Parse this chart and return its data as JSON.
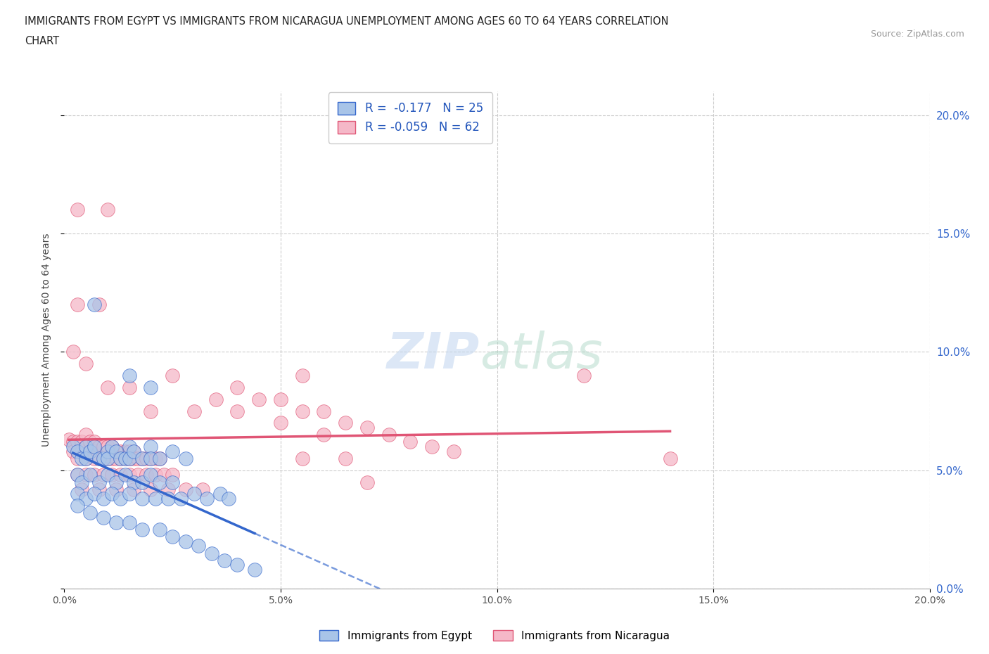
{
  "title_line1": "IMMIGRANTS FROM EGYPT VS IMMIGRANTS FROM NICARAGUA UNEMPLOYMENT AMONG AGES 60 TO 64 YEARS CORRELATION",
  "title_line2": "CHART",
  "source_text": "Source: ZipAtlas.com",
  "ylabel": "Unemployment Among Ages 60 to 64 years",
  "xlim": [
    0.0,
    0.2
  ],
  "ylim": [
    0.0,
    0.21
  ],
  "xticks": [
    0.0,
    0.05,
    0.1,
    0.15,
    0.2
  ],
  "yticks": [
    0.0,
    0.05,
    0.1,
    0.15,
    0.2
  ],
  "legend_R_egypt": "-0.177",
  "legend_N_egypt": "25",
  "legend_R_nicaragua": "-0.059",
  "legend_N_nicaragua": "62",
  "egypt_color": "#a8c4e8",
  "nicaragua_color": "#f5b8c8",
  "egypt_line_color": "#3366cc",
  "nicaragua_line_color": "#e05575",
  "egypt_scatter": [
    [
      0.002,
      0.06
    ],
    [
      0.003,
      0.058
    ],
    [
      0.004,
      0.055
    ],
    [
      0.005,
      0.06
    ],
    [
      0.005,
      0.055
    ],
    [
      0.006,
      0.058
    ],
    [
      0.007,
      0.06
    ],
    [
      0.008,
      0.055
    ],
    [
      0.009,
      0.055
    ],
    [
      0.01,
      0.058
    ],
    [
      0.01,
      0.055
    ],
    [
      0.011,
      0.06
    ],
    [
      0.012,
      0.058
    ],
    [
      0.013,
      0.055
    ],
    [
      0.014,
      0.055
    ],
    [
      0.015,
      0.06
    ],
    [
      0.015,
      0.055
    ],
    [
      0.016,
      0.058
    ],
    [
      0.018,
      0.055
    ],
    [
      0.02,
      0.06
    ],
    [
      0.02,
      0.055
    ],
    [
      0.022,
      0.055
    ],
    [
      0.025,
      0.058
    ],
    [
      0.028,
      0.055
    ],
    [
      0.003,
      0.048
    ],
    [
      0.004,
      0.045
    ],
    [
      0.006,
      0.048
    ],
    [
      0.008,
      0.045
    ],
    [
      0.01,
      0.048
    ],
    [
      0.012,
      0.045
    ],
    [
      0.014,
      0.048
    ],
    [
      0.016,
      0.045
    ],
    [
      0.018,
      0.045
    ],
    [
      0.02,
      0.048
    ],
    [
      0.022,
      0.045
    ],
    [
      0.025,
      0.045
    ],
    [
      0.003,
      0.04
    ],
    [
      0.005,
      0.038
    ],
    [
      0.007,
      0.04
    ],
    [
      0.009,
      0.038
    ],
    [
      0.011,
      0.04
    ],
    [
      0.013,
      0.038
    ],
    [
      0.015,
      0.04
    ],
    [
      0.018,
      0.038
    ],
    [
      0.021,
      0.038
    ],
    [
      0.024,
      0.038
    ],
    [
      0.027,
      0.038
    ],
    [
      0.03,
      0.04
    ],
    [
      0.033,
      0.038
    ],
    [
      0.036,
      0.04
    ],
    [
      0.038,
      0.038
    ],
    [
      0.015,
      0.09
    ],
    [
      0.02,
      0.085
    ],
    [
      0.007,
      0.12
    ],
    [
      0.003,
      0.035
    ],
    [
      0.006,
      0.032
    ],
    [
      0.009,
      0.03
    ],
    [
      0.012,
      0.028
    ],
    [
      0.015,
      0.028
    ],
    [
      0.018,
      0.025
    ],
    [
      0.022,
      0.025
    ],
    [
      0.025,
      0.022
    ],
    [
      0.028,
      0.02
    ],
    [
      0.031,
      0.018
    ],
    [
      0.034,
      0.015
    ],
    [
      0.037,
      0.012
    ],
    [
      0.04,
      0.01
    ],
    [
      0.044,
      0.008
    ]
  ],
  "nicaragua_scatter": [
    [
      0.001,
      0.063
    ],
    [
      0.002,
      0.062
    ],
    [
      0.002,
      0.058
    ],
    [
      0.003,
      0.062
    ],
    [
      0.003,
      0.058
    ],
    [
      0.003,
      0.055
    ],
    [
      0.004,
      0.062
    ],
    [
      0.004,
      0.058
    ],
    [
      0.005,
      0.065
    ],
    [
      0.005,
      0.06
    ],
    [
      0.005,
      0.055
    ],
    [
      0.006,
      0.062
    ],
    [
      0.006,
      0.058
    ],
    [
      0.007,
      0.062
    ],
    [
      0.007,
      0.058
    ],
    [
      0.007,
      0.055
    ],
    [
      0.008,
      0.06
    ],
    [
      0.008,
      0.055
    ],
    [
      0.009,
      0.06
    ],
    [
      0.009,
      0.055
    ],
    [
      0.01,
      0.06
    ],
    [
      0.01,
      0.055
    ],
    [
      0.011,
      0.06
    ],
    [
      0.011,
      0.055
    ],
    [
      0.012,
      0.058
    ],
    [
      0.012,
      0.055
    ],
    [
      0.013,
      0.058
    ],
    [
      0.013,
      0.055
    ],
    [
      0.014,
      0.058
    ],
    [
      0.014,
      0.055
    ],
    [
      0.015,
      0.058
    ],
    [
      0.015,
      0.055
    ],
    [
      0.016,
      0.058
    ],
    [
      0.016,
      0.055
    ],
    [
      0.017,
      0.055
    ],
    [
      0.018,
      0.055
    ],
    [
      0.019,
      0.055
    ],
    [
      0.02,
      0.055
    ],
    [
      0.021,
      0.055
    ],
    [
      0.022,
      0.055
    ],
    [
      0.003,
      0.048
    ],
    [
      0.005,
      0.048
    ],
    [
      0.007,
      0.048
    ],
    [
      0.009,
      0.048
    ],
    [
      0.011,
      0.048
    ],
    [
      0.013,
      0.048
    ],
    [
      0.015,
      0.048
    ],
    [
      0.017,
      0.048
    ],
    [
      0.019,
      0.048
    ],
    [
      0.021,
      0.048
    ],
    [
      0.023,
      0.048
    ],
    [
      0.025,
      0.048
    ],
    [
      0.004,
      0.042
    ],
    [
      0.008,
      0.042
    ],
    [
      0.012,
      0.042
    ],
    [
      0.016,
      0.042
    ],
    [
      0.02,
      0.042
    ],
    [
      0.024,
      0.042
    ],
    [
      0.028,
      0.042
    ],
    [
      0.032,
      0.042
    ],
    [
      0.002,
      0.1
    ],
    [
      0.005,
      0.095
    ],
    [
      0.01,
      0.085
    ],
    [
      0.015,
      0.085
    ],
    [
      0.003,
      0.12
    ],
    [
      0.008,
      0.12
    ],
    [
      0.003,
      0.16
    ],
    [
      0.01,
      0.16
    ],
    [
      0.025,
      0.09
    ],
    [
      0.055,
      0.09
    ],
    [
      0.12,
      0.09
    ],
    [
      0.055,
      0.055
    ],
    [
      0.065,
      0.055
    ],
    [
      0.07,
      0.045
    ],
    [
      0.14,
      0.055
    ],
    [
      0.02,
      0.075
    ],
    [
      0.03,
      0.075
    ],
    [
      0.04,
      0.075
    ],
    [
      0.05,
      0.07
    ],
    [
      0.06,
      0.065
    ],
    [
      0.035,
      0.08
    ],
    [
      0.04,
      0.085
    ],
    [
      0.045,
      0.08
    ],
    [
      0.05,
      0.08
    ],
    [
      0.055,
      0.075
    ],
    [
      0.06,
      0.075
    ],
    [
      0.065,
      0.07
    ],
    [
      0.07,
      0.068
    ],
    [
      0.075,
      0.065
    ],
    [
      0.08,
      0.062
    ],
    [
      0.085,
      0.06
    ],
    [
      0.09,
      0.058
    ]
  ],
  "watermark_zip": "ZIP",
  "watermark_atlas": "atlas",
  "background_color": "#ffffff",
  "grid_color": "#cccccc"
}
